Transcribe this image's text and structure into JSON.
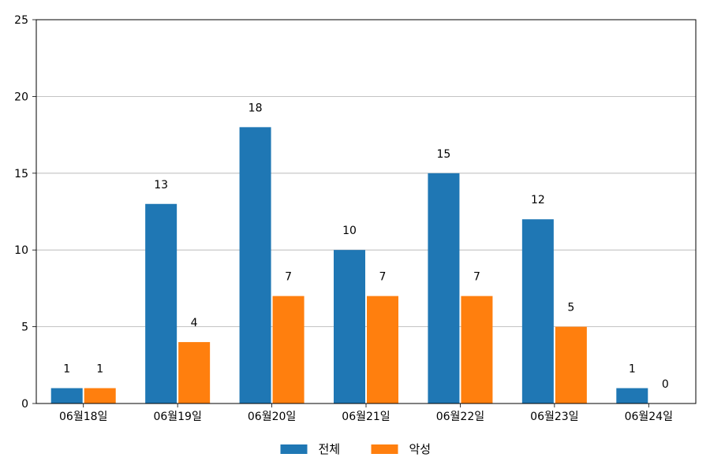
{
  "chart_data": {
    "type": "bar",
    "title": "",
    "xlabel": "",
    "ylabel": "",
    "categories": [
      "06월18일",
      "06월19일",
      "06월20일",
      "06월21일",
      "06월22일",
      "06월23일",
      "06월24일"
    ],
    "series": [
      {
        "name": "전체",
        "color": "#1f77b4",
        "values": [
          1,
          13,
          18,
          10,
          15,
          12,
          1
        ]
      },
      {
        "name": "악성",
        "color": "#ff7f0e",
        "values": [
          1,
          4,
          7,
          7,
          7,
          5,
          0
        ]
      }
    ],
    "ylim": [
      0,
      25
    ],
    "yticks": [
      0,
      5,
      10,
      15,
      20,
      25
    ],
    "grid": "horizontal",
    "legend": "bottom-center",
    "data_labels": true
  }
}
